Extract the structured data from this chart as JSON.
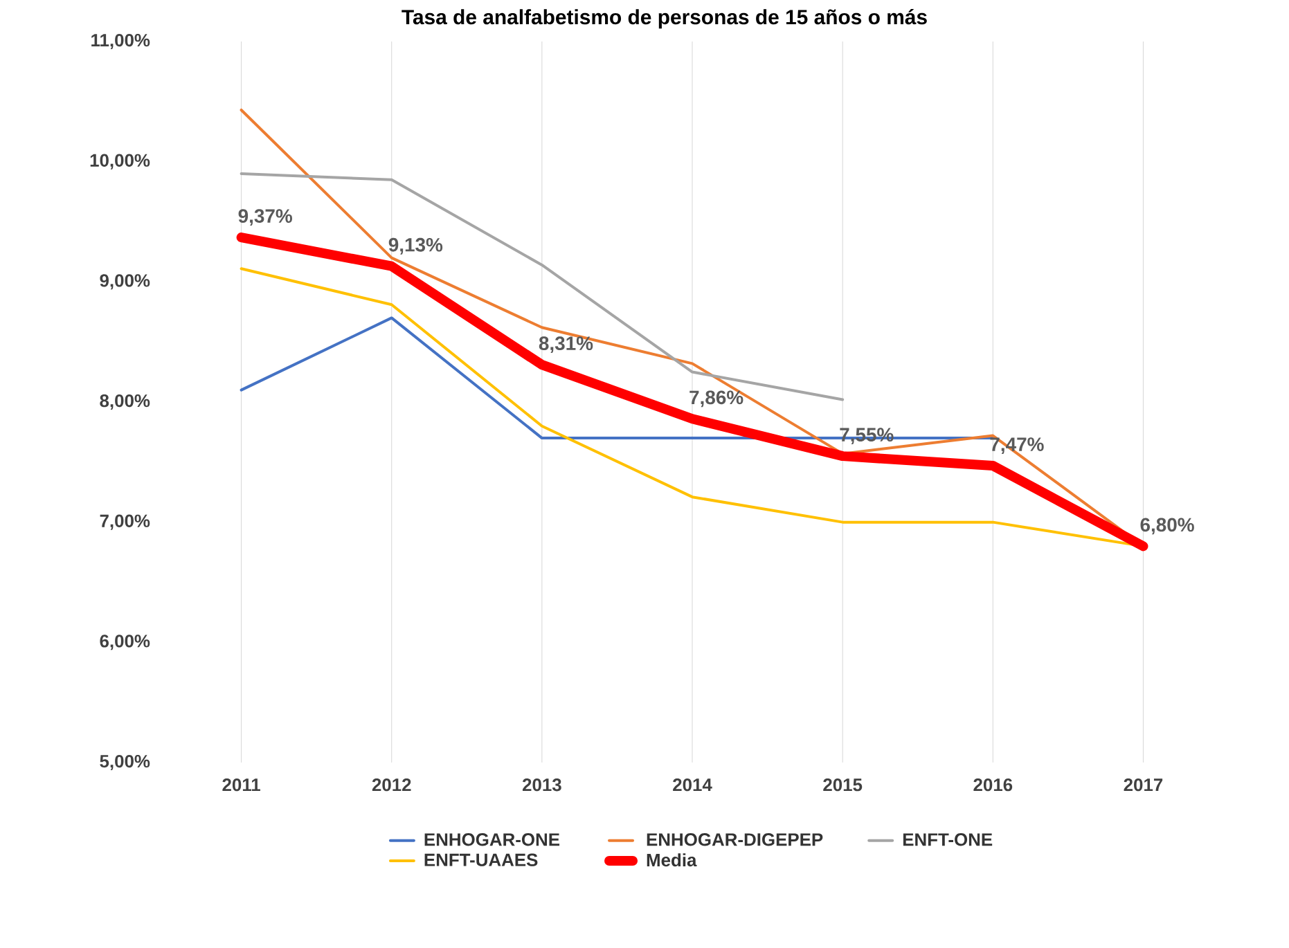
{
  "chart_data": {
    "type": "line",
    "title": "Tasa de analfabetismo de personas de 15 años o más",
    "categories": [
      "2011",
      "2012",
      "2013",
      "2014",
      "2015",
      "2016",
      "2017"
    ],
    "series": [
      {
        "name": "ENHOGAR-ONE",
        "color": "#4472c4",
        "values": [
          8.1,
          8.7,
          7.7,
          7.7,
          7.7,
          7.7,
          null
        ]
      },
      {
        "name": "ENHOGAR-DIGEPEP",
        "color": "#ed7d31",
        "values": [
          10.43,
          9.2,
          8.62,
          8.32,
          7.57,
          7.72,
          6.8
        ]
      },
      {
        "name": "ENFT-ONE",
        "color": "#a5a5a5",
        "values": [
          9.9,
          9.85,
          9.14,
          8.25,
          8.02,
          null,
          null
        ]
      },
      {
        "name": "ENFT-UAAES",
        "color": "#ffc000",
        "values": [
          9.11,
          8.81,
          7.8,
          7.21,
          7.0,
          7.0,
          6.8
        ]
      },
      {
        "name": "Media",
        "color": "#ff0000",
        "values": [
          9.37,
          9.13,
          8.31,
          7.86,
          7.55,
          7.47,
          6.8
        ],
        "value_labels": [
          "9,37%",
          "9,13%",
          "8,31%",
          "7,86%",
          "7,55%",
          "7,47%",
          "6,80%"
        ]
      }
    ],
    "ylim": [
      5,
      11
    ],
    "yticks": [
      {
        "value": 5,
        "label": "5,00%"
      },
      {
        "value": 6,
        "label": "6,00%"
      },
      {
        "value": 7,
        "label": "7,00%"
      },
      {
        "value": 8,
        "label": "8,00%"
      },
      {
        "value": 9,
        "label": "9,00%"
      },
      {
        "value": 10,
        "label": "10,00%"
      },
      {
        "value": 11,
        "label": "11,00%"
      }
    ],
    "grid": "x",
    "legend": "bottom",
    "marker": "none",
    "line_style": "solid"
  }
}
